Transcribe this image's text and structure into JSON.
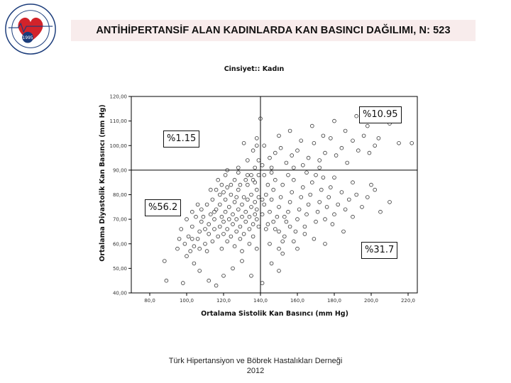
{
  "slide": {
    "title": "ANTİHİPERTANSİF ALAN KADINLARDA KAN BASINCI DAĞILIMI, N: 523",
    "footer_line1": "Türk Hipertansiyon ve Böbrek Hastalıkları Derneği",
    "footer_line2": "2012",
    "logo": {
      "icon": "society-seal-icon",
      "year": "1995",
      "colors": {
        "ring": "#1a3b7a",
        "heart": "#d2232a"
      }
    }
  },
  "chart_data": {
    "type": "scatter",
    "title": "Cinsiyet:: Kadın",
    "xlabel": "Ortalama Sistolik Kan Basıncı (mm Hg)",
    "ylabel": "Ortalama Diyastolik Kan Basıncı (mm Hg)",
    "xlim": [
      70,
      225
    ],
    "ylim": [
      40,
      120
    ],
    "xticks": [
      "80,0",
      "100,0",
      "120,0",
      "140,0",
      "160,0",
      "180,0",
      "200,0",
      "220,0"
    ],
    "xtick_values": [
      80,
      100,
      120,
      140,
      160,
      180,
      200,
      220
    ],
    "yticks": [
      "40,00",
      "50,00",
      "60,00",
      "70,00",
      "80,00",
      "90,00",
      "100,00",
      "110,00",
      "120,00"
    ],
    "ytick_values": [
      40,
      50,
      60,
      70,
      80,
      90,
      100,
      110,
      120
    ],
    "reference_lines": {
      "x": 140,
      "y": 90
    },
    "quadrant_labels": [
      {
        "quadrant": "upper-right",
        "text": "%10.95"
      },
      {
        "quadrant": "upper-left",
        "text": "%1.15"
      },
      {
        "quadrant": "lower-left",
        "text": "%56.2"
      },
      {
        "quadrant": "lower-right",
        "text": "%31.7"
      }
    ],
    "grid": false,
    "marker": "open-circle",
    "colors": {
      "axis": "#000000",
      "marker": "#333333"
    },
    "points": [
      [
        89,
        45
      ],
      [
        88,
        53
      ],
      [
        98,
        44
      ],
      [
        100,
        55
      ],
      [
        104,
        52
      ],
      [
        107,
        49
      ],
      [
        112,
        45
      ],
      [
        116,
        43
      ],
      [
        120,
        47
      ],
      [
        125,
        50
      ],
      [
        130,
        53
      ],
      [
        135,
        47
      ],
      [
        141,
        44
      ],
      [
        146,
        52
      ],
      [
        150,
        49
      ],
      [
        152,
        56
      ],
      [
        99,
        60
      ],
      [
        101,
        63
      ],
      [
        103,
        67
      ],
      [
        104,
        59
      ],
      [
        106,
        62
      ],
      [
        107,
        65
      ],
      [
        108,
        69
      ],
      [
        109,
        71
      ],
      [
        110,
        60
      ],
      [
        111,
        57
      ],
      [
        112,
        64
      ],
      [
        112,
        68
      ],
      [
        113,
        72
      ],
      [
        114,
        61
      ],
      [
        115,
        66
      ],
      [
        115,
        70
      ],
      [
        116,
        74
      ],
      [
        117,
        63
      ],
      [
        118,
        67
      ],
      [
        118,
        76
      ],
      [
        119,
        58
      ],
      [
        119,
        71
      ],
      [
        120,
        64
      ],
      [
        120,
        69
      ],
      [
        121,
        73
      ],
      [
        121,
        78
      ],
      [
        122,
        61
      ],
      [
        122,
        66
      ],
      [
        123,
        70
      ],
      [
        123,
        75
      ],
      [
        124,
        80
      ],
      [
        124,
        63
      ],
      [
        125,
        68
      ],
      [
        125,
        72
      ],
      [
        126,
        77
      ],
      [
        126,
        59
      ],
      [
        127,
        65
      ],
      [
        127,
        70
      ],
      [
        128,
        74
      ],
      [
        128,
        82
      ],
      [
        129,
        62
      ],
      [
        129,
        67
      ],
      [
        130,
        71
      ],
      [
        130,
        76
      ],
      [
        131,
        79
      ],
      [
        131,
        64
      ],
      [
        132,
        69
      ],
      [
        132,
        73
      ],
      [
        133,
        78
      ],
      [
        133,
        84
      ],
      [
        134,
        66
      ],
      [
        134,
        71
      ],
      [
        135,
        75
      ],
      [
        135,
        80
      ],
      [
        136,
        63
      ],
      [
        136,
        68
      ],
      [
        137,
        72
      ],
      [
        137,
        77
      ],
      [
        137,
        85
      ],
      [
        138,
        70
      ],
      [
        138,
        74
      ],
      [
        138,
        82
      ],
      [
        139,
        67
      ],
      [
        139,
        79
      ],
      [
        139,
        88
      ],
      [
        130,
        57
      ],
      [
        134,
        60
      ],
      [
        138,
        58
      ],
      [
        126,
        86
      ],
      [
        122,
        83
      ],
      [
        118,
        80
      ],
      [
        114,
        78
      ],
      [
        111,
        76
      ],
      [
        108,
        74
      ],
      [
        105,
        71
      ],
      [
        117,
        86
      ],
      [
        121,
        88
      ],
      [
        128,
        89
      ],
      [
        133,
        88
      ],
      [
        124,
        84
      ],
      [
        129,
        84
      ],
      [
        136,
        86
      ],
      [
        132,
        86
      ],
      [
        116,
        82
      ],
      [
        113,
        82
      ],
      [
        119,
        84
      ],
      [
        127,
        79
      ],
      [
        120,
        81
      ],
      [
        115,
        73
      ],
      [
        110,
        66
      ],
      [
        107,
        58
      ],
      [
        103,
        62
      ],
      [
        102,
        57
      ],
      [
        97,
        66
      ],
      [
        96,
        62
      ],
      [
        95,
        58
      ],
      [
        100,
        70
      ],
      [
        103,
        73
      ],
      [
        106,
        76
      ],
      [
        122,
        90
      ],
      [
        128,
        91
      ],
      [
        133,
        94
      ],
      [
        136,
        98
      ],
      [
        138,
        103
      ],
      [
        131,
        101
      ],
      [
        141,
        72
      ],
      [
        142,
        76
      ],
      [
        143,
        80
      ],
      [
        144,
        68
      ],
      [
        145,
        73
      ],
      [
        146,
        78
      ],
      [
        147,
        82
      ],
      [
        148,
        66
      ],
      [
        149,
        71
      ],
      [
        150,
        75
      ],
      [
        151,
        79
      ],
      [
        152,
        84
      ],
      [
        153,
        63
      ],
      [
        154,
        69
      ],
      [
        155,
        73
      ],
      [
        156,
        77
      ],
      [
        157,
        81
      ],
      [
        158,
        86
      ],
      [
        159,
        65
      ],
      [
        160,
        70
      ],
      [
        161,
        74
      ],
      [
        162,
        79
      ],
      [
        163,
        83
      ],
      [
        164,
        67
      ],
      [
        165,
        72
      ],
      [
        166,
        76
      ],
      [
        167,
        80
      ],
      [
        168,
        85
      ],
      [
        169,
        62
      ],
      [
        170,
        69
      ],
      [
        171,
        73
      ],
      [
        172,
        77
      ],
      [
        173,
        82
      ],
      [
        174,
        87
      ],
      [
        175,
        70
      ],
      [
        176,
        75
      ],
      [
        177,
        79
      ],
      [
        178,
        83
      ],
      [
        179,
        68
      ],
      [
        180,
        72
      ],
      [
        182,
        76
      ],
      [
        184,
        81
      ],
      [
        186,
        74
      ],
      [
        188,
        78
      ],
      [
        190,
        71
      ],
      [
        192,
        80
      ],
      [
        195,
        75
      ],
      [
        198,
        79
      ],
      [
        202,
        82
      ],
      [
        205,
        73
      ],
      [
        210,
        77
      ],
      [
        185,
        65
      ],
      [
        175,
        60
      ],
      [
        160,
        58
      ],
      [
        150,
        58
      ],
      [
        145,
        60
      ],
      [
        143,
        66
      ],
      [
        147,
        69
      ],
      [
        153,
        71
      ],
      [
        141,
        78
      ],
      [
        144,
        84
      ],
      [
        148,
        86
      ],
      [
        142,
        88
      ],
      [
        146,
        89
      ],
      [
        155,
        88
      ],
      [
        165,
        89
      ],
      [
        170,
        88
      ],
      [
        180,
        87
      ],
      [
        190,
        85
      ],
      [
        200,
        84
      ],
      [
        152,
        61
      ],
      [
        158,
        61
      ],
      [
        164,
        64
      ],
      [
        156,
        67
      ],
      [
        150,
        65
      ],
      [
        141,
        92
      ],
      [
        145,
        95
      ],
      [
        148,
        97
      ],
      [
        151,
        99
      ],
      [
        154,
        93
      ],
      [
        157,
        96
      ],
      [
        160,
        98
      ],
      [
        163,
        92
      ],
      [
        166,
        95
      ],
      [
        169,
        101
      ],
      [
        172,
        94
      ],
      [
        175,
        97
      ],
      [
        178,
        103
      ],
      [
        181,
        96
      ],
      [
        184,
        99
      ],
      [
        187,
        93
      ],
      [
        190,
        102
      ],
      [
        193,
        98
      ],
      [
        196,
        104
      ],
      [
        199,
        97
      ],
      [
        202,
        100
      ],
      [
        150,
        104
      ],
      [
        156,
        106
      ],
      [
        162,
        102
      ],
      [
        168,
        108
      ],
      [
        174,
        104
      ],
      [
        180,
        110
      ],
      [
        186,
        106
      ],
      [
        192,
        112
      ],
      [
        198,
        108
      ],
      [
        204,
        103
      ],
      [
        210,
        109
      ],
      [
        215,
        101
      ],
      [
        222,
        101
      ],
      [
        142,
        100
      ],
      [
        146,
        91
      ],
      [
        158,
        91
      ],
      [
        172,
        91
      ],
      [
        140,
        111
      ],
      [
        138,
        100
      ],
      [
        135,
        88
      ],
      [
        137,
        91
      ],
      [
        139,
        94
      ]
    ]
  }
}
